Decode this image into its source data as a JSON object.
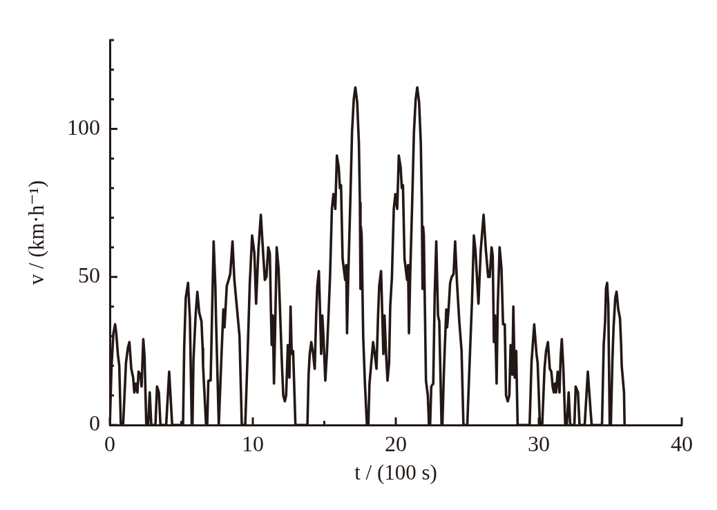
{
  "chart_data": {
    "type": "line",
    "xlabel": "t / (100 s)",
    "ylabel": "v / (km·h⁻¹)",
    "xlim": [
      0,
      40
    ],
    "ylim": [
      0,
      130
    ],
    "xticks": [
      0,
      {
        "value": 5,
        "label": null
      },
      10,
      {
        "value": 15,
        "label": null
      },
      20,
      {
        "value": 25,
        "label": null
      },
      30,
      {
        "value": 35,
        "label": null
      },
      40
    ],
    "yticks": [
      0,
      {
        "value": 10,
        "label": null
      },
      {
        "value": 20,
        "label": null
      },
      {
        "value": 30,
        "label": null
      },
      {
        "value": 40,
        "label": null
      },
      50,
      {
        "value": 60,
        "label": null
      },
      {
        "value": 70,
        "label": null
      },
      {
        "value": 80,
        "label": null
      },
      {
        "value": 90,
        "label": null
      },
      100,
      {
        "value": 110,
        "label": null
      },
      {
        "value": 120,
        "label": null
      },
      {
        "value": 130,
        "label": null
      }
    ],
    "x": [
      0,
      0.12,
      0.25,
      0.37,
      0.45,
      0.56,
      0.66,
      0.77,
      0.93,
      1.13,
      1.26,
      1.37,
      1.5,
      1.63,
      1.71,
      1.82,
      1.93,
      2.01,
      2.14,
      2.22,
      2.34,
      2.43,
      2.55,
      2.68,
      2.79,
      2.9,
      3.19,
      3.3,
      3.43,
      3.54,
      3.94,
      4.15,
      4.36,
      5.12,
      5.2,
      5.31,
      5.47,
      5.6,
      5.73,
      5.78,
      5.85,
      6,
      6.12,
      6.25,
      6.41,
      6.49,
      6.52,
      6.73,
      6.81,
      6.89,
      7.05,
      7.21,
      7.26,
      7.38,
      7.42,
      7.62,
      7.78,
      7.94,
      8.02,
      8.1,
      8.18,
      8.31,
      8.42,
      8.58,
      8.71,
      8.9,
      9.07,
      9.23,
      9.47,
      9.63,
      9.79,
      9.95,
      10.11,
      10.23,
      10.39,
      10.56,
      10.71,
      10.84,
      10.95,
      11.08,
      11.19,
      11.27,
      11.32,
      11.4,
      11.48,
      11.56,
      11.67,
      11.8,
      11.93,
      12.04,
      12.13,
      12.24,
      12.33,
      12.45,
      12.56,
      12.64,
      12.72,
      12.82,
      12.98,
      13.82,
      13.9,
      13.98,
      14.09,
      14.22,
      14.33,
      14.43,
      14.51,
      14.62,
      14.7,
      14.78,
      14.86,
      14.94,
      15.07,
      15.18,
      15.31,
      15.4,
      15.53,
      15.64,
      15.77,
      15.88,
      16.01,
      16.09,
      16.17,
      16.28,
      16.36,
      16.46,
      16.53,
      16.59,
      16.68,
      16.81,
      16.94,
      17.06,
      17.17,
      17.3,
      17.42,
      17.49,
      17.53,
      17.56,
      17.61,
      17.72,
      17.84,
      17.98,
      18.08,
      18.16,
      18.25,
      18.41,
      18.53,
      18.65,
      18.76,
      18.84,
      18.97,
      19.05,
      19.13,
      19.21,
      19.32,
      19.42,
      19.53,
      19.61,
      19.73,
      19.86,
      19.97,
      20.1,
      20.21,
      20.34,
      20.42,
      20.5,
      20.61,
      20.69,
      20.79,
      20.86,
      20.92,
      21.01,
      21.14,
      21.27,
      21.39,
      21.5,
      21.63,
      21.75,
      21.82,
      21.87,
      21.91,
      21.96,
      22.11,
      22.24,
      22.32,
      22.4,
      22.48,
      22.62,
      22.72,
      22.83,
      22.95,
      23.04,
      23.2,
      23.26,
      23.37,
      23.53,
      23.59,
      23.69,
      23.8,
      23.91,
      24.04,
      24.15,
      24.28,
      24.44,
      24.6,
      24.73,
      25,
      25.17,
      25.33,
      25.46,
      25.57,
      25.78,
      25.94,
      26.14,
      26.3,
      26.46,
      26.57,
      26.7,
      26.78,
      26.86,
      26.94,
      27.05,
      27.13,
      27.26,
      27.39,
      27.5,
      27.62,
      27.71,
      27.83,
      27.94,
      28.03,
      28.15,
      28.22,
      28.32,
      28.42,
      28.52,
      29.36,
      29.49,
      29.68,
      29.84,
      29.92,
      30.08,
      30.24,
      30.4,
      30.51,
      30.64,
      30.77,
      30.88,
      30.97,
      31.05,
      31.13,
      31.21,
      31.32,
      31.45,
      31.53,
      31.61,
      31.72,
      31.85,
      31.96,
      32.09,
      32.2,
      32.49,
      32.58,
      32.74,
      32.85,
      33.21,
      33.43,
      33.62,
      33.7,
      34.42,
      34.54,
      34.64,
      34.7,
      34.78,
      34.86,
      34.96,
      35.04,
      35.15,
      35.23,
      35.35,
      35.44,
      35.56,
      35.68,
      35.76,
      35.8,
      35.96,
      36
    ],
    "series": [
      {
        "color": "#231815",
        "values": [
          0,
          20,
          31,
          34,
          31,
          24,
          20,
          0,
          0,
          21,
          26,
          28,
          19,
          16,
          11,
          14,
          11,
          18,
          17,
          13,
          29,
          23,
          0,
          0,
          11,
          0,
          0,
          13,
          11,
          0,
          0,
          18,
          0,
          0,
          26,
          43,
          48,
          36,
          0,
          0,
          22,
          37,
          45,
          38,
          35,
          26,
          20,
          0,
          0,
          15,
          15,
          51,
          62,
          47,
          37,
          0,
          20,
          39,
          33,
          40,
          47,
          49,
          51,
          62,
          49,
          39,
          30,
          0,
          0,
          23,
          48,
          64,
          58,
          41,
          59,
          71,
          59,
          49,
          50,
          60,
          58,
          38,
          27,
          37,
          14,
          32,
          60,
          53,
          35,
          20,
          10,
          8,
          10,
          27,
          16,
          40,
          24,
          25,
          0,
          0,
          17,
          24,
          28,
          24,
          19,
          37,
          47,
          52,
          39,
          24,
          37,
          30,
          15,
          24,
          39,
          50,
          73,
          78,
          73,
          91,
          87,
          80,
          81,
          56,
          53,
          49,
          54,
          31,
          51,
          74,
          99,
          110,
          114,
          109,
          95,
          75,
          46,
          67,
          64,
          30,
          14,
          0,
          0,
          14,
          19,
          28,
          24,
          19,
          37,
          47,
          52,
          38,
          24,
          37,
          24,
          15,
          21,
          40,
          50,
          73,
          78,
          73,
          91,
          87,
          80,
          81,
          56,
          53,
          49,
          54,
          31,
          51,
          74,
          99,
          110,
          114,
          109,
          95,
          75,
          46,
          67,
          64,
          15,
          10,
          0,
          0,
          13,
          14,
          44,
          62,
          37,
          35,
          0,
          0,
          19,
          39,
          33,
          39,
          48,
          50,
          51,
          62,
          48,
          35,
          25,
          0,
          0,
          22,
          42,
          64,
          59,
          41,
          59,
          71,
          59,
          50,
          50,
          60,
          57,
          28,
          37,
          14,
          40,
          60,
          53,
          34,
          34,
          10,
          8,
          10,
          27,
          17,
          40,
          16,
          25,
          0,
          0,
          21,
          34,
          24,
          21,
          0,
          0,
          19,
          25,
          28,
          19,
          18,
          13,
          11,
          14,
          11,
          18,
          11,
          23,
          29,
          19,
          0,
          0,
          11,
          0,
          0,
          13,
          11,
          0,
          0,
          18,
          5,
          0,
          0,
          27,
          35,
          46,
          48,
          41,
          0,
          0,
          22,
          33,
          43,
          45,
          39,
          36,
          27,
          20,
          11,
          0
        ]
      }
    ]
  }
}
